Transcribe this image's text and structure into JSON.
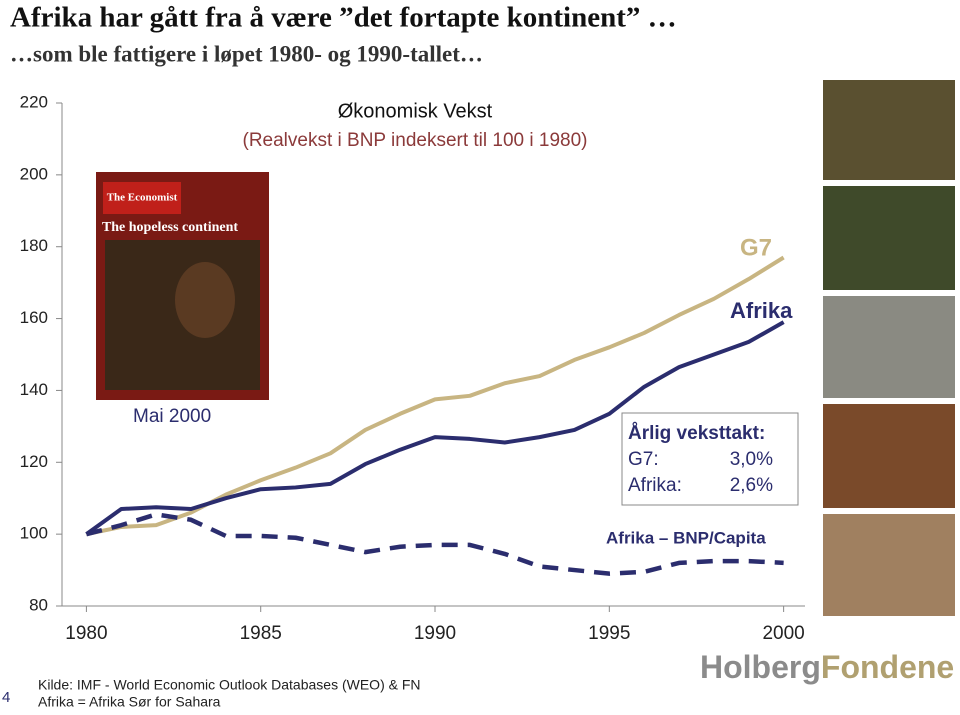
{
  "title": "Afrika har gått fra å være ”det fortapte kontinent” …",
  "subtitle": "…som ble fattigere i løpet 1980- og 1990-tallet…",
  "chart_data": {
    "type": "line",
    "title": "Økonomisk Vekst",
    "subtitle": "(Realvekst i BNP indeksert til 100 i 1980)",
    "x": [
      1980,
      1981,
      1982,
      1983,
      1984,
      1985,
      1986,
      1987,
      1988,
      1989,
      1990,
      1991,
      1992,
      1993,
      1994,
      1995,
      1996,
      1997,
      1998,
      1999,
      2000
    ],
    "series": [
      {
        "name": "G7",
        "color": "#c8b582",
        "values": [
          100,
          102,
          102.5,
          106,
          111,
          115,
          118.5,
          122.5,
          129,
          133.5,
          137.5,
          138.5,
          142,
          144,
          148.5,
          152,
          156,
          161,
          165.5,
          171,
          177
        ]
      },
      {
        "name": "Afrika",
        "color": "#2b2d6e",
        "values": [
          100,
          107,
          107.5,
          107,
          110,
          112.5,
          113,
          114,
          119.5,
          123.5,
          127,
          126.5,
          125.5,
          127,
          129,
          133.5,
          141,
          146.5,
          150,
          153.5,
          159
        ]
      },
      {
        "name": "Afrika – BNP/Capita",
        "color": "#2b2d6e",
        "dashed": true,
        "values": [
          100,
          102.5,
          105.5,
          104,
          99.5,
          99.5,
          99,
          97,
          95,
          96.5,
          97,
          97,
          94.5,
          91,
          90,
          89,
          89.5,
          92,
          92.5,
          92.5,
          92
        ]
      }
    ],
    "xlim": [
      1979.3,
      2000.9
    ],
    "xticks": [
      1980,
      1985,
      1990,
      1995,
      2000
    ],
    "ylim": [
      80,
      220
    ],
    "yticks": [
      80,
      100,
      120,
      140,
      160,
      180,
      200,
      220
    ],
    "annotations": {
      "cover_date": "Mai 2000",
      "growth_title": "Årlig veksttakt:",
      "g7_label": "G7:",
      "g7_rate": "3,0%",
      "africa_label": "Afrika:",
      "africa_rate": "2,6%"
    }
  },
  "cover": {
    "masthead": "The Economist",
    "headline": "The hopeless continent"
  },
  "source": [
    "Kilde: IMF - World Economic Outlook Databases (WEO) & FN",
    "Afrika = Afrika Sør for Sahara"
  ],
  "page_number": "4",
  "logo": [
    "Holberg",
    "Fondene"
  ]
}
